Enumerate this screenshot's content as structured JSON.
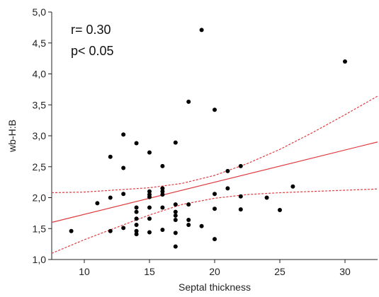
{
  "chart_data": {
    "type": "scatter",
    "xlabel": "Septal thickness",
    "ylabel": "wb-H:B",
    "xlim": [
      7.5,
      32.5
    ],
    "ylim": [
      1.0,
      5.0
    ],
    "x_ticks": [
      10,
      15,
      20,
      25,
      30
    ],
    "x_tick_labels": [
      "10",
      "15",
      "20",
      "25",
      "30"
    ],
    "y_ticks": [
      1.0,
      1.5,
      2.0,
      2.5,
      3.0,
      3.5,
      4.0,
      4.5,
      5.0
    ],
    "y_tick_labels": [
      "1,0",
      "1,5",
      "2,0",
      "2,5",
      "3,0",
      "3,5",
      "4,0",
      "4,5",
      "5,0"
    ],
    "grid": false,
    "annotations": [
      "r= 0.30",
      "p< 0.05"
    ],
    "regression": {
      "x": [
        7.5,
        32.5
      ],
      "y": [
        1.6,
        2.9
      ],
      "color": "#e03a3e"
    },
    "ci_upper": {
      "x": [
        7.5,
        10,
        15,
        17.5,
        20,
        22.5,
        25,
        27.5,
        30,
        32.5
      ],
      "y": [
        2.08,
        2.09,
        2.16,
        2.23,
        2.36,
        2.55,
        2.78,
        3.05,
        3.34,
        3.64
      ],
      "color": "#e03a3e"
    },
    "ci_lower": {
      "x": [
        7.5,
        10,
        15,
        17.5,
        20,
        22.5,
        25,
        27.5,
        30,
        32.5
      ],
      "y": [
        1.1,
        1.32,
        1.72,
        1.89,
        1.99,
        2.05,
        2.08,
        2.1,
        2.12,
        2.14
      ],
      "color": "#e03a3e"
    },
    "points": [
      {
        "x": 9,
        "y": 1.46
      },
      {
        "x": 11,
        "y": 1.91
      },
      {
        "x": 12,
        "y": 2.66
      },
      {
        "x": 12,
        "y": 2.0
      },
      {
        "x": 12,
        "y": 1.46
      },
      {
        "x": 13,
        "y": 3.02
      },
      {
        "x": 13,
        "y": 2.48
      },
      {
        "x": 13,
        "y": 2.06
      },
      {
        "x": 13,
        "y": 1.51
      },
      {
        "x": 14,
        "y": 2.88
      },
      {
        "x": 14,
        "y": 1.84
      },
      {
        "x": 14,
        "y": 1.77
      },
      {
        "x": 14,
        "y": 1.66
      },
      {
        "x": 14,
        "y": 1.56
      },
      {
        "x": 14,
        "y": 1.46
      },
      {
        "x": 14,
        "y": 1.41
      },
      {
        "x": 15,
        "y": 2.73
      },
      {
        "x": 15,
        "y": 2.1
      },
      {
        "x": 15,
        "y": 2.05
      },
      {
        "x": 15,
        "y": 2.01
      },
      {
        "x": 15,
        "y": 1.84
      },
      {
        "x": 15,
        "y": 1.66
      },
      {
        "x": 15,
        "y": 1.44
      },
      {
        "x": 16,
        "y": 2.51
      },
      {
        "x": 16,
        "y": 2.15
      },
      {
        "x": 16,
        "y": 2.1
      },
      {
        "x": 16,
        "y": 2.05
      },
      {
        "x": 16,
        "y": 1.84
      },
      {
        "x": 16,
        "y": 1.48
      },
      {
        "x": 17,
        "y": 2.89
      },
      {
        "x": 17,
        "y": 1.89
      },
      {
        "x": 17,
        "y": 1.77
      },
      {
        "x": 17,
        "y": 1.71
      },
      {
        "x": 17,
        "y": 1.64
      },
      {
        "x": 17,
        "y": 1.43
      },
      {
        "x": 17,
        "y": 1.21
      },
      {
        "x": 18,
        "y": 3.55
      },
      {
        "x": 18,
        "y": 1.89
      },
      {
        "x": 18,
        "y": 1.64
      },
      {
        "x": 18,
        "y": 1.56
      },
      {
        "x": 19,
        "y": 4.71
      },
      {
        "x": 19,
        "y": 1.54
      },
      {
        "x": 20,
        "y": 3.42
      },
      {
        "x": 20,
        "y": 2.06
      },
      {
        "x": 20,
        "y": 1.82
      },
      {
        "x": 20,
        "y": 1.33
      },
      {
        "x": 21,
        "y": 2.43
      },
      {
        "x": 21,
        "y": 2.15
      },
      {
        "x": 22,
        "y": 2.51
      },
      {
        "x": 22,
        "y": 2.02
      },
      {
        "x": 22,
        "y": 1.81
      },
      {
        "x": 24,
        "y": 2.0
      },
      {
        "x": 25,
        "y": 1.8
      },
      {
        "x": 26,
        "y": 2.18
      },
      {
        "x": 30,
        "y": 4.2
      }
    ]
  },
  "colors": {
    "axis": "#222222",
    "point": "#000000",
    "fit": "#e03a3e"
  }
}
